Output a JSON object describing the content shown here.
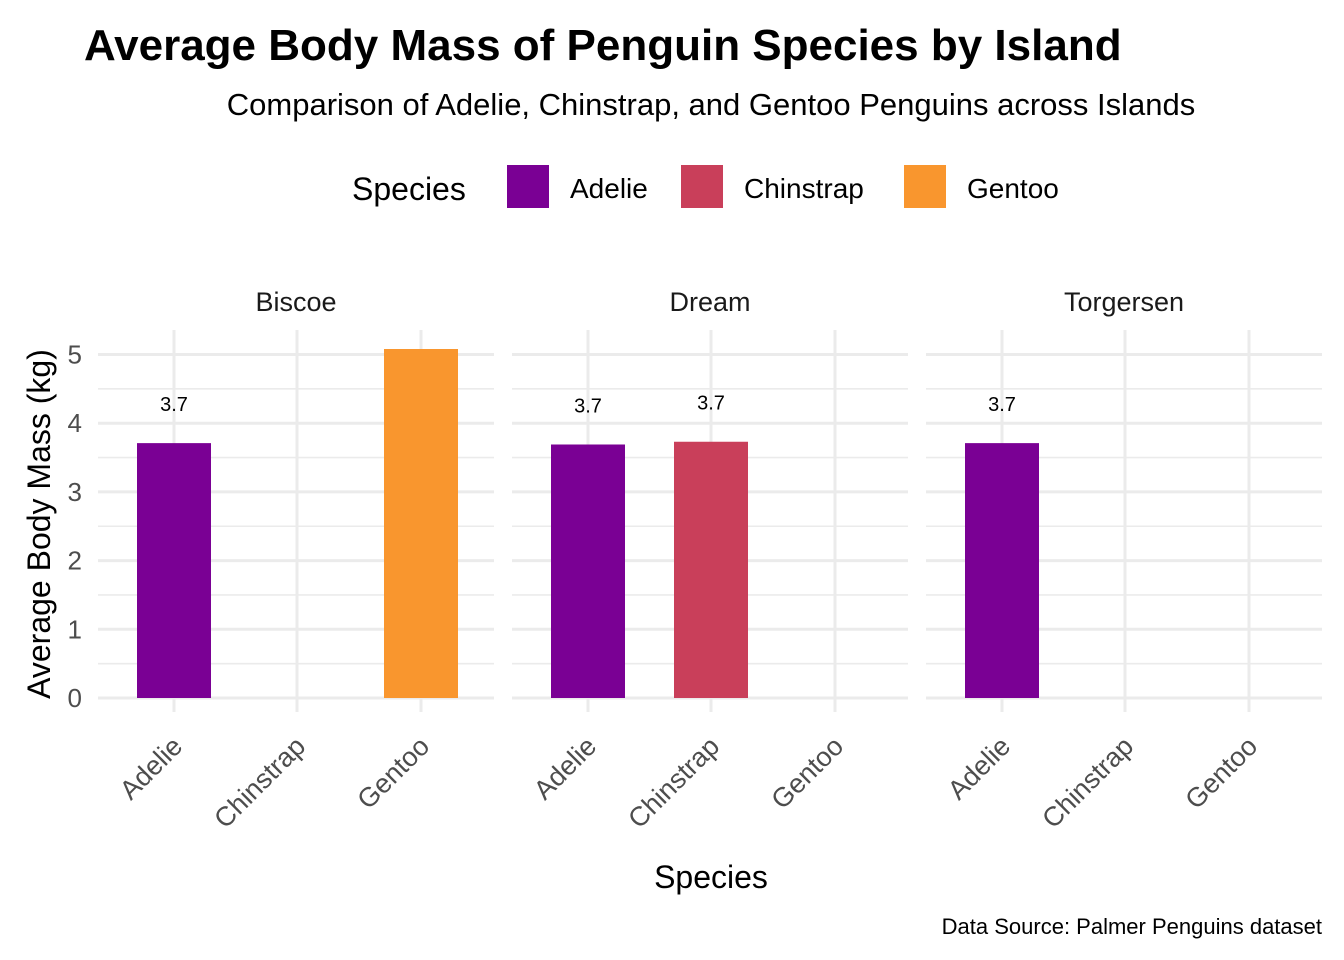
{
  "chart_data": {
    "type": "bar",
    "title": "Average Body Mass of Penguin Species by Island",
    "subtitle": "Comparison of Adelie, Chinstrap, and Gentoo Penguins across Islands",
    "xlabel": "Species",
    "ylabel": "Average Body Mass (kg)",
    "caption": "Data Source: Palmer Penguins dataset",
    "legend": {
      "title": "Species",
      "position": "top",
      "entries": [
        "Adelie",
        "Chinstrap",
        "Gentoo"
      ]
    },
    "colors": {
      "Adelie": "#7A0094",
      "Chinstrap": "#C93F5A",
      "Gentoo": "#F9962E"
    },
    "categories": [
      "Adelie",
      "Chinstrap",
      "Gentoo"
    ],
    "ylim": [
      0,
      5.35
    ],
    "yticks": [
      0,
      1,
      2,
      3,
      4,
      5
    ],
    "grid": true,
    "facets": [
      {
        "name": "Biscoe",
        "bars": [
          {
            "species": "Adelie",
            "value": 3.71,
            "label": "3.7"
          },
          {
            "species": "Gentoo",
            "value": 5.08,
            "label": ""
          }
        ]
      },
      {
        "name": "Dream",
        "bars": [
          {
            "species": "Adelie",
            "value": 3.69,
            "label": "3.7"
          },
          {
            "species": "Chinstrap",
            "value": 3.73,
            "label": "3.7"
          }
        ]
      },
      {
        "name": "Torgersen",
        "bars": [
          {
            "species": "Adelie",
            "value": 3.71,
            "label": "3.7"
          }
        ]
      }
    ]
  }
}
